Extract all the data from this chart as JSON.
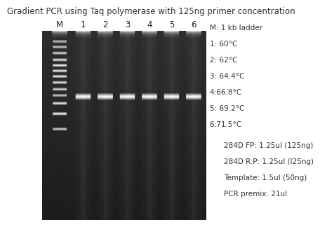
{
  "title": "Gradient PCR using Taq polymerase with 125ng primer concentration",
  "title_fontsize": 8.5,
  "lane_labels": [
    "M",
    "1",
    "2",
    "3",
    "4",
    "5",
    "6"
  ],
  "legend_lines": [
    "M: 1 kb ladder",
    "1: 60°C",
    "2: 62°C",
    "3: 64.4°C",
    "4:66.8°C",
    "5: 69.2°C",
    "6:71.5°C"
  ],
  "details_lines": [
    "284D FP: 1.25ul (125ng)",
    "284D R.P: 1.25ul (l25ng)",
    "Template: 1.5ul (50ng)",
    "PCR premix: 21ul"
  ],
  "background_color": "#ffffff",
  "legend_fontsize": 7.5,
  "details_fontsize": 7.5,
  "label_fontsize": 8.5
}
